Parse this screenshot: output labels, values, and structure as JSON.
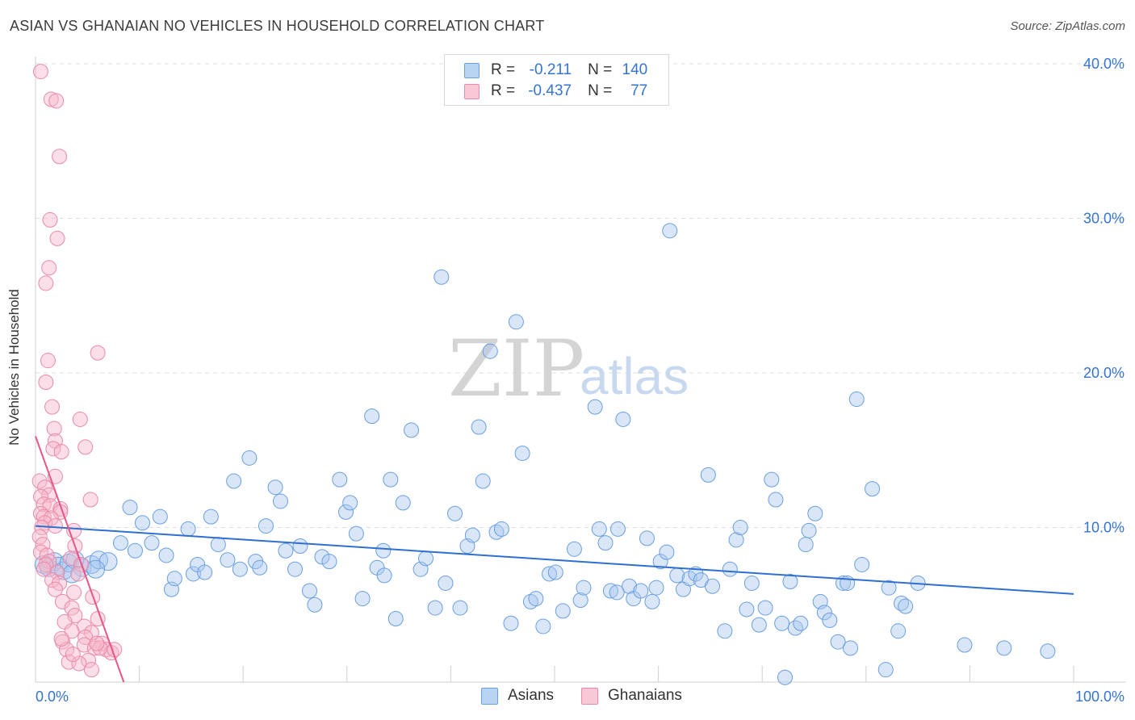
{
  "header": {
    "title": "ASIAN VS GHANAIAN NO VEHICLES IN HOUSEHOLD CORRELATION CHART",
    "source": "Source: ZipAtlas.com"
  },
  "legend": {
    "rows": [
      {
        "r_label": "R =",
        "r_value": "-0.211",
        "n_label": "N =",
        "n_value": "140"
      },
      {
        "r_label": "R =",
        "r_value": "-0.437",
        "n_label": "N =",
        "n_value": "77"
      }
    ]
  },
  "bottom_legend": {
    "asians": "Asians",
    "ghanaians": "Ghanaians"
  },
  "watermark": {
    "zip": "ZIP",
    "atlas": "atlas"
  },
  "colors": {
    "asian_fill": "#a8c8f0",
    "asian_stroke": "#6a9fe0",
    "asian_line": "#2e6fd0",
    "ghana_fill": "#f7b6c9",
    "ghana_stroke": "#e98aa8",
    "ghana_line": "#e8558a",
    "tick_label": "#3574d1",
    "grid": "#dedede"
  },
  "chart_data": {
    "type": "scatter",
    "title": "ASIAN VS GHANAIAN NO VEHICLES IN HOUSEHOLD CORRELATION CHART",
    "xlabel": "",
    "ylabel": "No Vehicles in Household",
    "xlim": [
      0,
      100
    ],
    "ylim": [
      0,
      40.5
    ],
    "x_tick_labels": [
      {
        "value": 0,
        "label": "0.0%"
      },
      {
        "value": 100,
        "label": "100.0%"
      }
    ],
    "y_tick_labels": [
      {
        "value": 10,
        "label": "10.0%"
      },
      {
        "value": 20,
        "label": "20.0%"
      },
      {
        "value": 30,
        "label": "30.0%"
      },
      {
        "value": 40,
        "label": "40.0%"
      }
    ],
    "series": [
      {
        "name": "Asians",
        "R": -0.211,
        "N": 140,
        "trend": {
          "x": [
            0,
            100
          ],
          "y": [
            10.1,
            5.7
          ]
        },
        "points": [
          [
            0.8,
            7.6
          ],
          [
            1.3,
            7.4
          ],
          [
            1.8,
            7.8
          ],
          [
            2.2,
            7.5
          ],
          [
            2.7,
            7.2
          ],
          [
            3.2,
            7.7
          ],
          [
            3.8,
            7.9
          ],
          [
            4.5,
            7.4
          ],
          [
            5.4,
            7.6
          ],
          [
            6.1,
            7.9
          ],
          [
            7.0,
            7.8
          ],
          [
            5.8,
            7.3
          ],
          [
            3.5,
            7.0
          ],
          [
            8.2,
            9.0
          ],
          [
            9.1,
            11.3
          ],
          [
            9.6,
            8.5
          ],
          [
            10.3,
            10.3
          ],
          [
            11.2,
            9.0
          ],
          [
            12.0,
            10.7
          ],
          [
            12.6,
            8.2
          ],
          [
            13.1,
            6.0
          ],
          [
            13.4,
            6.7
          ],
          [
            14.7,
            9.9
          ],
          [
            15.2,
            7.0
          ],
          [
            15.6,
            7.6
          ],
          [
            16.3,
            7.1
          ],
          [
            16.9,
            10.7
          ],
          [
            17.6,
            8.9
          ],
          [
            18.5,
            7.9
          ],
          [
            19.1,
            13.0
          ],
          [
            19.7,
            7.3
          ],
          [
            20.6,
            14.5
          ],
          [
            21.2,
            7.8
          ],
          [
            21.6,
            7.4
          ],
          [
            22.2,
            10.1
          ],
          [
            23.1,
            12.6
          ],
          [
            23.6,
            11.7
          ],
          [
            24.1,
            8.5
          ],
          [
            25.0,
            7.3
          ],
          [
            25.5,
            8.8
          ],
          [
            26.4,
            5.9
          ],
          [
            26.9,
            5.0
          ],
          [
            27.6,
            8.1
          ],
          [
            28.3,
            7.8
          ],
          [
            29.3,
            13.1
          ],
          [
            29.9,
            11.0
          ],
          [
            30.3,
            11.6
          ],
          [
            30.9,
            9.6
          ],
          [
            31.5,
            5.4
          ],
          [
            32.4,
            17.2
          ],
          [
            32.9,
            7.4
          ],
          [
            33.5,
            8.5
          ],
          [
            34.2,
            13.1
          ],
          [
            34.7,
            4.1
          ],
          [
            35.4,
            11.6
          ],
          [
            36.2,
            16.3
          ],
          [
            37.1,
            7.3
          ],
          [
            37.6,
            8.0
          ],
          [
            38.5,
            4.8
          ],
          [
            39.1,
            26.2
          ],
          [
            39.5,
            6.4
          ],
          [
            40.4,
            10.9
          ],
          [
            40.9,
            4.8
          ],
          [
            41.6,
            8.8
          ],
          [
            42.1,
            9.5
          ],
          [
            42.7,
            16.5
          ],
          [
            43.1,
            13.0
          ],
          [
            43.8,
            21.4
          ],
          [
            44.4,
            9.7
          ],
          [
            44.9,
            9.9
          ],
          [
            45.8,
            3.8
          ],
          [
            46.3,
            23.3
          ],
          [
            46.9,
            14.8
          ],
          [
            47.7,
            5.2
          ],
          [
            48.2,
            5.4
          ],
          [
            48.9,
            3.6
          ],
          [
            49.5,
            7.0
          ],
          [
            50.1,
            7.1
          ],
          [
            50.8,
            4.6
          ],
          [
            51.9,
            8.6
          ],
          [
            52.5,
            5.3
          ],
          [
            52.8,
            6.1
          ],
          [
            53.9,
            17.8
          ],
          [
            54.3,
            9.9
          ],
          [
            54.9,
            9.0
          ],
          [
            55.4,
            5.9
          ],
          [
            56.1,
            9.9
          ],
          [
            56.6,
            17.0
          ],
          [
            57.2,
            6.2
          ],
          [
            57.6,
            5.4
          ],
          [
            58.3,
            5.9
          ],
          [
            58.9,
            9.3
          ],
          [
            59.4,
            5.2
          ],
          [
            60.2,
            7.8
          ],
          [
            60.8,
            8.4
          ],
          [
            61.1,
            29.2
          ],
          [
            61.8,
            6.9
          ],
          [
            62.4,
            6.0
          ],
          [
            63.0,
            6.7
          ],
          [
            63.6,
            7.0
          ],
          [
            64.1,
            6.6
          ],
          [
            64.8,
            13.4
          ],
          [
            65.2,
            6.2
          ],
          [
            66.4,
            3.3
          ],
          [
            66.9,
            7.3
          ],
          [
            67.5,
            9.2
          ],
          [
            67.9,
            10.0
          ],
          [
            68.5,
            4.7
          ],
          [
            69.0,
            6.4
          ],
          [
            69.7,
            3.7
          ],
          [
            70.3,
            4.8
          ],
          [
            70.9,
            13.1
          ],
          [
            71.3,
            11.8
          ],
          [
            71.9,
            3.8
          ],
          [
            72.7,
            6.5
          ],
          [
            73.2,
            3.5
          ],
          [
            73.7,
            3.8
          ],
          [
            74.2,
            8.9
          ],
          [
            74.5,
            9.8
          ],
          [
            75.1,
            10.9
          ],
          [
            75.6,
            5.2
          ],
          [
            76.0,
            4.5
          ],
          [
            76.5,
            4.0
          ],
          [
            77.3,
            2.6
          ],
          [
            77.8,
            6.4
          ],
          [
            78.2,
            6.4
          ],
          [
            78.5,
            2.2
          ],
          [
            79.1,
            18.3
          ],
          [
            79.6,
            7.6
          ],
          [
            80.6,
            12.5
          ],
          [
            81.9,
            0.8
          ],
          [
            82.2,
            6.1
          ],
          [
            83.1,
            3.3
          ],
          [
            83.4,
            5.1
          ],
          [
            83.8,
            4.9
          ],
          [
            85.0,
            6.4
          ],
          [
            89.5,
            2.4
          ],
          [
            93.3,
            2.2
          ],
          [
            97.5,
            2.0
          ],
          [
            56.0,
            5.8
          ],
          [
            59.8,
            6.1
          ],
          [
            72.2,
            0.3
          ],
          [
            33.6,
            6.9
          ]
        ]
      },
      {
        "name": "Ghanaians",
        "R": -0.437,
        "N": 77,
        "trend": {
          "x": [
            0,
            8.5
          ],
          "y": [
            15.9,
            0.0
          ]
        },
        "points": [
          [
            0.5,
            39.5
          ],
          [
            1.5,
            37.7
          ],
          [
            2.0,
            37.6
          ],
          [
            2.3,
            34.0
          ],
          [
            1.4,
            29.9
          ],
          [
            2.1,
            28.7
          ],
          [
            1.3,
            26.8
          ],
          [
            1.0,
            25.8
          ],
          [
            6.0,
            21.3
          ],
          [
            1.2,
            20.8
          ],
          [
            1.0,
            19.4
          ],
          [
            1.6,
            17.8
          ],
          [
            4.3,
            17.0
          ],
          [
            1.8,
            16.4
          ],
          [
            1.9,
            15.6
          ],
          [
            4.8,
            15.2
          ],
          [
            1.7,
            15.1
          ],
          [
            2.5,
            14.9
          ],
          [
            0.4,
            13.0
          ],
          [
            1.9,
            13.3
          ],
          [
            0.9,
            12.6
          ],
          [
            1.3,
            12.1
          ],
          [
            0.5,
            12.0
          ],
          [
            5.3,
            11.8
          ],
          [
            0.8,
            11.5
          ],
          [
            1.4,
            11.4
          ],
          [
            2.4,
            11.2
          ],
          [
            2.4,
            11.0
          ],
          [
            0.5,
            10.9
          ],
          [
            0.8,
            10.7
          ],
          [
            1.5,
            10.6
          ],
          [
            0.9,
            10.3
          ],
          [
            1.9,
            10.1
          ],
          [
            0.6,
            10.0
          ],
          [
            3.7,
            9.8
          ],
          [
            0.4,
            9.4
          ],
          [
            0.7,
            8.9
          ],
          [
            3.8,
            8.8
          ],
          [
            0.5,
            8.4
          ],
          [
            1.1,
            8.2
          ],
          [
            3.4,
            8.0
          ],
          [
            1.3,
            7.8
          ],
          [
            1.0,
            7.6
          ],
          [
            4.4,
            7.6
          ],
          [
            0.8,
            7.3
          ],
          [
            2.1,
            7.1
          ],
          [
            4.1,
            7.0
          ],
          [
            1.6,
            6.6
          ],
          [
            2.3,
            6.4
          ],
          [
            1.9,
            6.0
          ],
          [
            3.7,
            5.8
          ],
          [
            5.5,
            5.5
          ],
          [
            2.6,
            5.2
          ],
          [
            3.5,
            4.8
          ],
          [
            3.8,
            4.3
          ],
          [
            6.0,
            4.1
          ],
          [
            2.8,
            3.9
          ],
          [
            4.7,
            3.6
          ],
          [
            3.5,
            3.3
          ],
          [
            5.4,
            3.2
          ],
          [
            4.8,
            2.9
          ],
          [
            2.6,
            2.6
          ],
          [
            6.4,
            2.5
          ],
          [
            4.7,
            2.4
          ],
          [
            5.7,
            2.2
          ],
          [
            6.8,
            2.1
          ],
          [
            7.3,
            1.9
          ],
          [
            3.0,
            2.1
          ],
          [
            2.5,
            2.8
          ],
          [
            5.1,
            1.4
          ],
          [
            3.2,
            1.3
          ],
          [
            4.2,
            1.2
          ],
          [
            5.4,
            0.8
          ],
          [
            7.6,
            2.1
          ],
          [
            6.2,
            2.2
          ],
          [
            5.9,
            2.5
          ],
          [
            3.6,
            1.8
          ]
        ]
      }
    ]
  }
}
